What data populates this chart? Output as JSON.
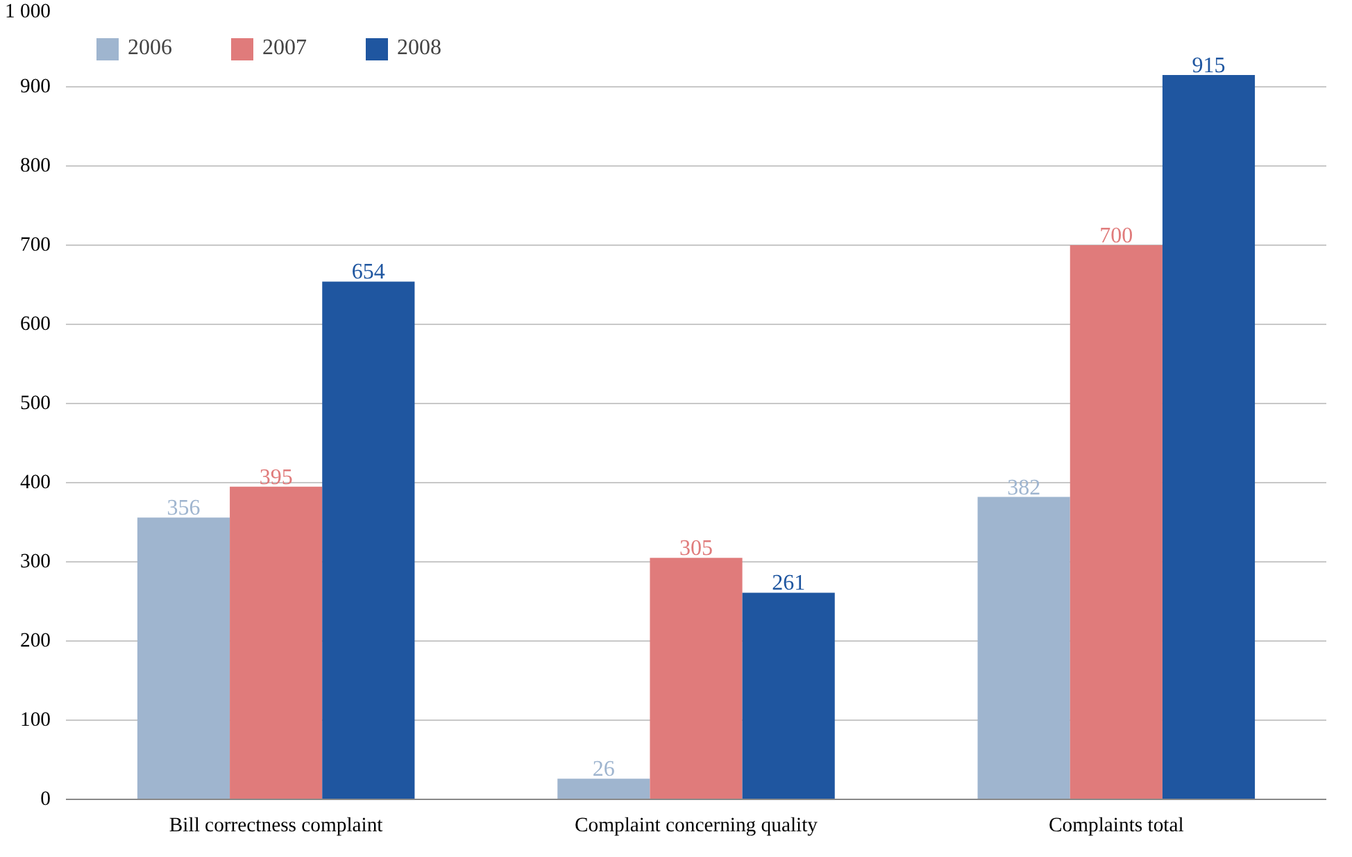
{
  "chart_data": {
    "type": "bar",
    "categories": [
      "Bill correctness complaint",
      "Complaint concerning quality",
      "Complaints total"
    ],
    "series": [
      {
        "name": "2006",
        "color": "#9fb5cf",
        "values": [
          356,
          26,
          382
        ]
      },
      {
        "name": "2007",
        "color": "#e07b7b",
        "values": [
          395,
          305,
          700
        ]
      },
      {
        "name": "2008",
        "color": "#1f56a0",
        "values": [
          654,
          261,
          915
        ]
      }
    ],
    "ylim": [
      0,
      1000
    ],
    "yticks": [
      0,
      100,
      200,
      300,
      400,
      500,
      600,
      700,
      800,
      900,
      {
        "value": 1000,
        "label": "1 000"
      }
    ],
    "grid": "y",
    "legend": "top left",
    "data_labels": true
  }
}
